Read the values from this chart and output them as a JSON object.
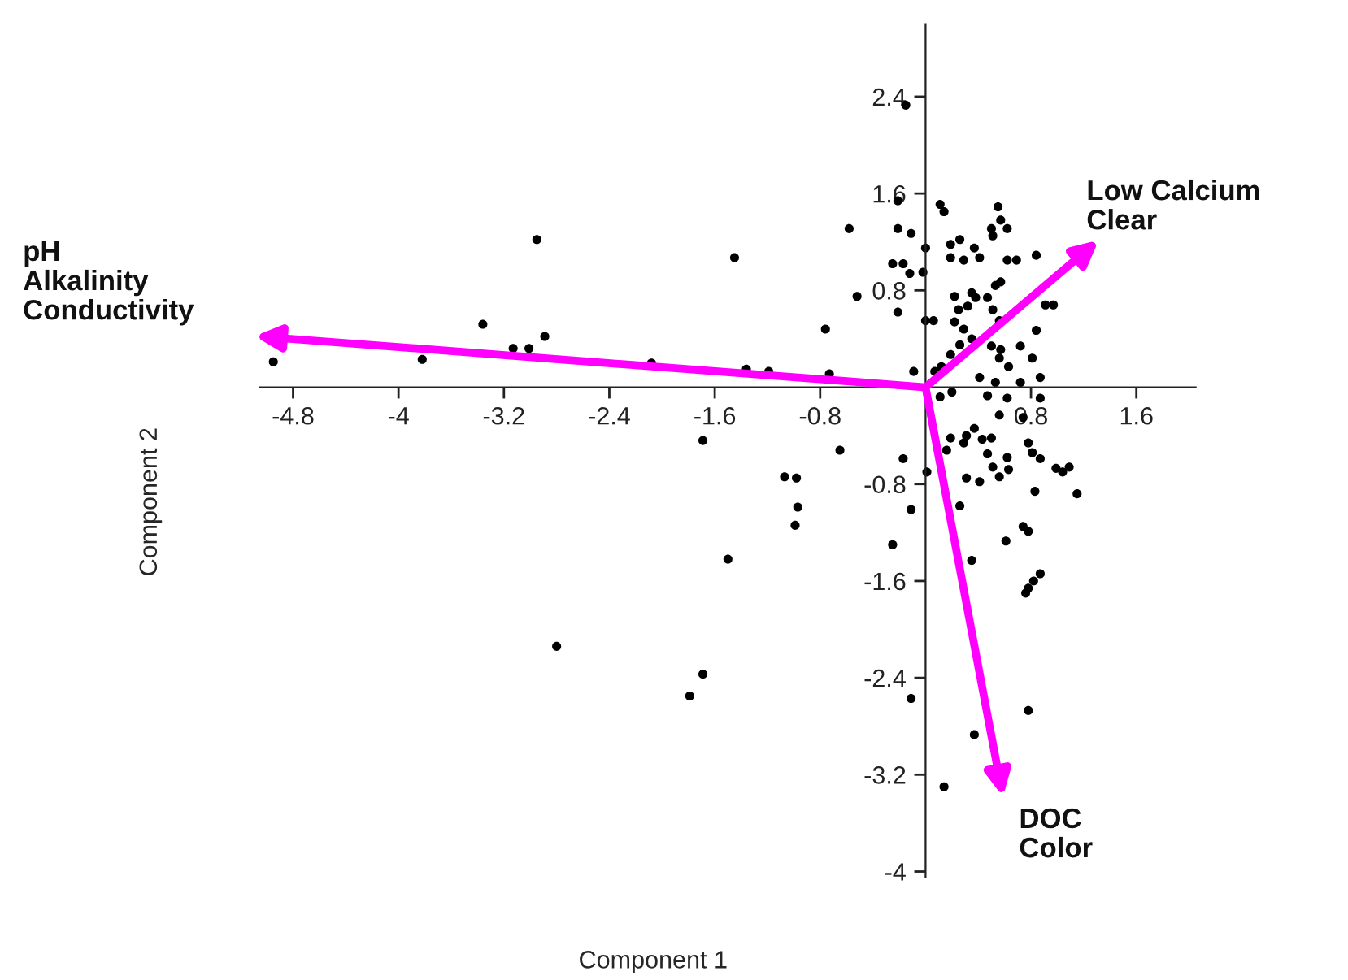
{
  "chart_data": {
    "type": "scatter",
    "xlabel": "Component 1",
    "ylabel": "Component 2",
    "marker": "circle",
    "grid": false,
    "legend": false,
    "xlim": [
      -5.05,
      2.05
    ],
    "ylim": [
      -4.05,
      3.0
    ],
    "xticks": [
      -4.8,
      -4,
      -3.2,
      -2.4,
      -1.6,
      -0.8,
      0.8,
      1.6
    ],
    "yticks": [
      2.4,
      1.6,
      0.8,
      -0.8,
      -1.6,
      -2.4,
      -3.2,
      -4
    ],
    "annotations": [
      "pH\nAlkalinity\nConductivity",
      "Low Calcium\nClear",
      "DOC\nColor"
    ],
    "series": [
      {
        "color": "#000000",
        "x": [
          -4.95,
          -3.82,
          -3.36,
          -3.13,
          -3.01,
          -2.89,
          -2.95,
          -2.08,
          -1.45,
          -1.36,
          -1.19,
          -1.69,
          -1.07,
          -0.98,
          -0.97,
          -0.99,
          -1.5,
          -2.8,
          -1.69,
          -1.79,
          -0.11,
          0.37,
          0.78,
          0.14,
          -0.15,
          -0.58,
          -0.21,
          -0.21,
          -0.11,
          0,
          -0.25,
          -0.17,
          -0.12,
          -0.02,
          -0.52,
          -0.21,
          0,
          0.06,
          -0.76,
          -0.73,
          -0.09,
          0.11,
          0.14,
          0.55,
          0.57,
          0.5,
          0.62,
          0.51,
          0.26,
          0.19,
          0.37,
          0.19,
          0.29,
          0.41,
          0.62,
          0.69,
          0.84,
          0.57,
          0.53,
          0.22,
          0.35,
          0.38,
          0.47,
          0.25,
          0.32,
          0.51,
          0.91,
          0.97,
          0.22,
          0.29,
          0.56,
          0.84,
          0.35,
          0.26,
          0.5,
          0.57,
          0.72,
          0.19,
          0.56,
          0.63,
          0.81,
          0.12,
          0.41,
          0.53,
          0.72,
          0.87,
          0.07,
          0.11,
          0.2,
          0.47,
          0.62,
          0.87,
          0.56,
          0.74,
          0.37,
          0.31,
          0.43,
          0.5,
          0.19,
          0.78,
          0.16,
          0.29,
          0.47,
          0.62,
          0.81,
          0.87,
          0.51,
          0.63,
          0.56,
          0.99,
          1.04,
          1.09,
          0.31,
          0.41,
          1.15,
          0.83,
          0.26,
          -0.65,
          -0.17,
          0.01,
          -0.11,
          0.74,
          0.78,
          0.61,
          -0.25,
          0.35,
          0.87,
          0.82,
          0.78,
          0.76
        ],
        "values": [
          0.21,
          0.23,
          0.52,
          0.32,
          0.32,
          0.42,
          1.22,
          0.2,
          1.07,
          0.15,
          0.13,
          -0.44,
          -0.74,
          -0.75,
          -0.99,
          -1.14,
          -1.42,
          -2.14,
          -2.37,
          -2.55,
          -2.57,
          -2.87,
          -2.67,
          -3.3,
          2.33,
          1.31,
          1.54,
          1.31,
          1.27,
          1.15,
          1.02,
          1.02,
          0.94,
          0.95,
          0.75,
          0.62,
          0.55,
          0.55,
          0.48,
          0.11,
          0.13,
          1.51,
          1.45,
          1.49,
          1.38,
          1.31,
          1.31,
          1.25,
          1.22,
          1.18,
          1.15,
          1.07,
          1.05,
          1.07,
          1.05,
          1.05,
          1.09,
          0.87,
          0.84,
          0.75,
          0.78,
          0.74,
          0.74,
          0.64,
          0.67,
          0.64,
          0.68,
          0.68,
          0.54,
          0.48,
          0.55,
          0.47,
          0.4,
          0.35,
          0.34,
          0.31,
          0.34,
          0.27,
          0.24,
          0.17,
          0.24,
          0.17,
          0.08,
          0.04,
          0.04,
          0.08,
          0.13,
          -0.08,
          -0.04,
          -0.07,
          -0.09,
          -0.09,
          -0.23,
          -0.25,
          -0.34,
          -0.4,
          -0.43,
          -0.42,
          -0.42,
          -0.46,
          -0.52,
          -0.46,
          -0.55,
          -0.58,
          -0.54,
          -0.59,
          -0.66,
          -0.68,
          -0.74,
          -0.67,
          -0.7,
          -0.66,
          -0.75,
          -0.78,
          -0.88,
          -0.86,
          -0.98,
          -0.52,
          -0.59,
          -0.7,
          -1.01,
          -1.15,
          -1.19,
          -1.27,
          -1.3,
          -1.43,
          -1.54,
          -1.6,
          -1.66,
          -1.7
        ]
      }
    ]
  }
}
